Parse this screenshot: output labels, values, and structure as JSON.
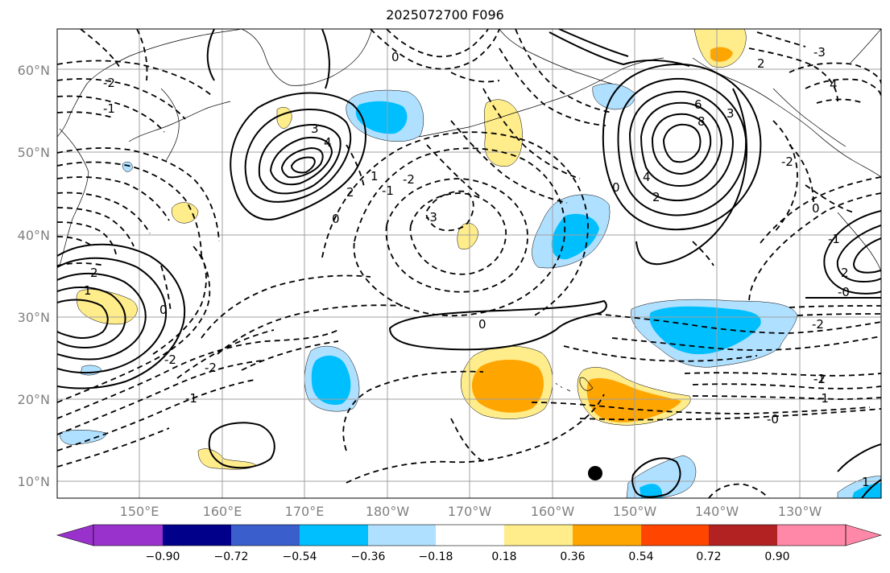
{
  "title": "2025072700 F096",
  "map": {
    "lat_labels": [
      "60°N",
      "50°N",
      "40°N",
      "30°N",
      "20°N",
      "10°N"
    ],
    "lon_labels": [
      "150°E",
      "160°E",
      "170°E",
      "180°W",
      "170°W",
      "160°W",
      "150°W",
      "140°W",
      "130°W"
    ],
    "contour_labels": [
      {
        "text": "3"
      },
      {
        "text": "4"
      },
      {
        "text": "2"
      },
      {
        "text": "1"
      },
      {
        "text": "0"
      },
      {
        "text": "-1"
      },
      {
        "text": "-2"
      },
      {
        "text": "-3"
      },
      {
        "text": "-2"
      },
      {
        "text": "-1"
      },
      {
        "text": "0"
      },
      {
        "text": "6"
      },
      {
        "text": "8"
      },
      {
        "text": "4"
      },
      {
        "text": "2"
      },
      {
        "text": "0"
      },
      {
        "text": "3"
      },
      {
        "text": "2"
      },
      {
        "text": "0"
      },
      {
        "text": "-2"
      },
      {
        "text": "-1"
      },
      {
        "text": "-0"
      },
      {
        "text": "-3"
      },
      {
        "text": "4"
      },
      {
        "text": "-2"
      },
      {
        "text": "-1"
      },
      {
        "text": "2"
      },
      {
        "text": "0"
      },
      {
        "text": "-2"
      },
      {
        "text": "-0"
      },
      {
        "text": "2"
      },
      {
        "text": "1"
      },
      {
        "text": "0"
      },
      {
        "text": "-2"
      },
      {
        "text": "-2"
      },
      {
        "text": "-1"
      },
      {
        "text": "-1"
      },
      {
        "text": "1"
      }
    ],
    "colors": {
      "cyan": "#00bfff",
      "light_blue": "#b0e0ff",
      "yellow": "#ffec8b",
      "orange": "#ffa500"
    }
  },
  "colorbar": {
    "ticks": [
      "−0.90",
      "−0.72",
      "−0.54",
      "−0.36",
      "−0.18",
      "0.18",
      "0.36",
      "0.54",
      "0.72",
      "0.90"
    ],
    "colors": [
      "#9932cc",
      "#00008b",
      "#3a5fcd",
      "#00bfff",
      "#b0e0ff",
      "#ffffff",
      "#ffec8b",
      "#ffa500",
      "#ff4500",
      "#b22222",
      "#ff88a8"
    ]
  }
}
